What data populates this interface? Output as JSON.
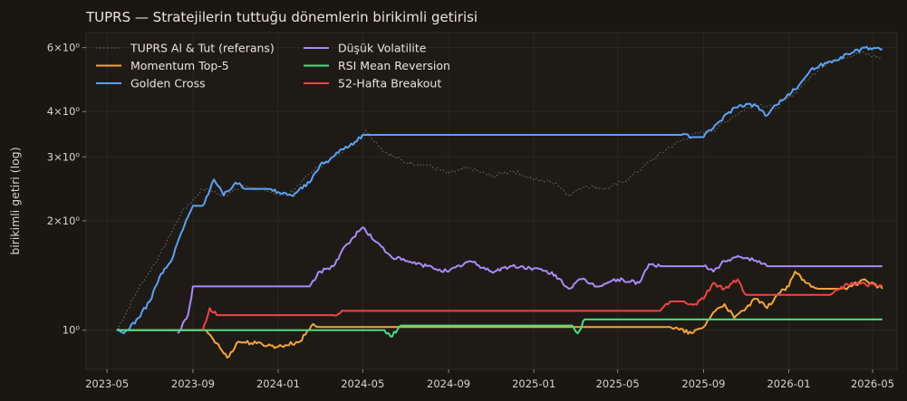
{
  "chart_data": {
    "type": "line",
    "title": "TUPRS — Stratejilerin tuttuğu dönemlerin birikimli getirisi",
    "xlabel": "",
    "ylabel": "birikimli getiri (log)",
    "yscale": "log",
    "ylim": [
      0.78,
      6.6
    ],
    "xlim": [
      "2023-04-01",
      "2026-06-05"
    ],
    "x_ticks": [
      "2023-05",
      "2023-09",
      "2024-01",
      "2024-05",
      "2024-09",
      "2025-01",
      "2025-05",
      "2025-09",
      "2026-01",
      "2026-05"
    ],
    "y_ticks": [
      {
        "value": 1,
        "label": "10⁰"
      },
      {
        "value": 2,
        "label": "2×10⁰"
      },
      {
        "value": 3,
        "label": "3×10⁰"
      },
      {
        "value": 4,
        "label": "4×10⁰"
      },
      {
        "value": 6,
        "label": "6×10⁰"
      }
    ],
    "grid": true,
    "legend_position": "top-left",
    "series": [
      {
        "name": "TUPRS Al & Tut (referans)",
        "color": "#6e6a62",
        "style": "dotted",
        "points": [
          [
            "2023-05-15",
            1.0
          ],
          [
            "2023-06-15",
            1.3
          ],
          [
            "2023-07-15",
            1.6
          ],
          [
            "2023-08-15",
            2.1
          ],
          [
            "2023-09-15",
            2.45
          ],
          [
            "2023-10-15",
            2.35
          ],
          [
            "2023-11-15",
            2.5
          ],
          [
            "2023-12-15",
            2.4
          ],
          [
            "2024-01-15",
            2.35
          ],
          [
            "2024-02-15",
            2.7
          ],
          [
            "2024-03-15",
            2.95
          ],
          [
            "2024-04-15",
            3.25
          ],
          [
            "2024-05-05",
            3.55
          ],
          [
            "2024-06-01",
            3.1
          ],
          [
            "2024-07-01",
            2.9
          ],
          [
            "2024-08-01",
            2.85
          ],
          [
            "2024-09-01",
            2.7
          ],
          [
            "2024-10-01",
            2.8
          ],
          [
            "2024-11-01",
            2.65
          ],
          [
            "2024-12-01",
            2.75
          ],
          [
            "2025-01-01",
            2.6
          ],
          [
            "2025-02-01",
            2.55
          ],
          [
            "2025-02-20",
            2.35
          ],
          [
            "2025-03-15",
            2.5
          ],
          [
            "2025-04-15",
            2.45
          ],
          [
            "2025-05-15",
            2.6
          ],
          [
            "2025-06-15",
            2.9
          ],
          [
            "2025-07-15",
            3.2
          ],
          [
            "2025-08-15",
            3.45
          ],
          [
            "2025-09-15",
            3.55
          ],
          [
            "2025-10-15",
            3.9
          ],
          [
            "2025-11-15",
            4.2
          ],
          [
            "2025-12-15",
            4.1
          ],
          [
            "2026-01-15",
            4.6
          ],
          [
            "2026-02-15",
            5.3
          ],
          [
            "2026-03-15",
            5.6
          ],
          [
            "2026-04-15",
            5.8
          ],
          [
            "2026-05-15",
            5.6
          ]
        ]
      },
      {
        "name": "Momentum Top-5",
        "color": "#f5a53a",
        "style": "solid",
        "points": [
          [
            "2023-05-15",
            1.0
          ],
          [
            "2023-09-20",
            1.0
          ],
          [
            "2023-10-05",
            0.92
          ],
          [
            "2023-10-20",
            0.84
          ],
          [
            "2023-11-05",
            0.93
          ],
          [
            "2023-12-01",
            0.92
          ],
          [
            "2024-01-01",
            0.9
          ],
          [
            "2024-02-01",
            0.93
          ],
          [
            "2024-02-20",
            1.04
          ],
          [
            "2024-03-01",
            1.02
          ],
          [
            "2024-04-01",
            1.02
          ],
          [
            "2024-05-01",
            1.02
          ],
          [
            "2024-09-01",
            1.02
          ],
          [
            "2025-01-01",
            1.02
          ],
          [
            "2025-07-15",
            1.02
          ],
          [
            "2025-08-15",
            0.98
          ],
          [
            "2025-09-01",
            1.02
          ],
          [
            "2025-09-15",
            1.12
          ],
          [
            "2025-10-01",
            1.18
          ],
          [
            "2025-10-15",
            1.08
          ],
          [
            "2025-11-01",
            1.15
          ],
          [
            "2025-11-15",
            1.22
          ],
          [
            "2025-12-01",
            1.15
          ],
          [
            "2025-12-15",
            1.25
          ],
          [
            "2026-01-01",
            1.32
          ],
          [
            "2026-01-10",
            1.45
          ],
          [
            "2026-01-25",
            1.35
          ],
          [
            "2026-02-15",
            1.3
          ],
          [
            "2026-03-15",
            1.3
          ],
          [
            "2026-04-01",
            1.32
          ],
          [
            "2026-04-20",
            1.38
          ],
          [
            "2026-05-15",
            1.3
          ]
        ]
      },
      {
        "name": "Golden Cross",
        "color": "#5aa2f5",
        "style": "solid",
        "points": [
          [
            "2023-05-15",
            1.0
          ],
          [
            "2023-05-25",
            0.98
          ],
          [
            "2023-06-15",
            1.08
          ],
          [
            "2023-07-01",
            1.2
          ],
          [
            "2023-07-15",
            1.4
          ],
          [
            "2023-08-01",
            1.55
          ],
          [
            "2023-08-15",
            1.85
          ],
          [
            "2023-09-01",
            2.2
          ],
          [
            "2023-09-15",
            2.2
          ],
          [
            "2023-10-01",
            2.6
          ],
          [
            "2023-10-15",
            2.35
          ],
          [
            "2023-11-01",
            2.55
          ],
          [
            "2023-11-15",
            2.45
          ],
          [
            "2023-12-15",
            2.45
          ],
          [
            "2024-01-01",
            2.4
          ],
          [
            "2024-01-20",
            2.35
          ],
          [
            "2024-02-15",
            2.55
          ],
          [
            "2024-03-01",
            2.85
          ],
          [
            "2024-03-15",
            2.95
          ],
          [
            "2024-04-01",
            3.15
          ],
          [
            "2024-04-20",
            3.3
          ],
          [
            "2024-05-01",
            3.45
          ],
          [
            "2024-06-01",
            3.45
          ],
          [
            "2025-01-01",
            3.45
          ],
          [
            "2025-08-01",
            3.45
          ],
          [
            "2025-08-15",
            3.4
          ],
          [
            "2025-09-01",
            3.4
          ],
          [
            "2025-09-20",
            3.7
          ],
          [
            "2025-10-15",
            4.1
          ],
          [
            "2025-11-01",
            4.2
          ],
          [
            "2025-11-15",
            4.15
          ],
          [
            "2025-12-01",
            3.9
          ],
          [
            "2025-12-20",
            4.3
          ],
          [
            "2026-01-10",
            4.6
          ],
          [
            "2026-02-01",
            5.2
          ],
          [
            "2026-03-01",
            5.5
          ],
          [
            "2026-04-01",
            5.8
          ],
          [
            "2026-04-20",
            6.0
          ],
          [
            "2026-05-15",
            5.95
          ]
        ]
      },
      {
        "name": "Düşük Volatilite",
        "color": "#a78bfa",
        "style": "solid",
        "points": [
          [
            "2023-08-10",
            0.98
          ],
          [
            "2023-08-25",
            1.1
          ],
          [
            "2023-09-01",
            1.32
          ],
          [
            "2023-10-01",
            1.32
          ],
          [
            "2024-01-01",
            1.32
          ],
          [
            "2024-02-15",
            1.32
          ],
          [
            "2024-03-01",
            1.45
          ],
          [
            "2024-03-20",
            1.5
          ],
          [
            "2024-04-01",
            1.65
          ],
          [
            "2024-04-15",
            1.78
          ],
          [
            "2024-05-01",
            1.92
          ],
          [
            "2024-05-20",
            1.75
          ],
          [
            "2024-06-10",
            1.6
          ],
          [
            "2024-07-01",
            1.55
          ],
          [
            "2024-08-01",
            1.5
          ],
          [
            "2024-09-01",
            1.45
          ],
          [
            "2024-10-01",
            1.55
          ],
          [
            "2024-11-01",
            1.45
          ],
          [
            "2024-12-01",
            1.5
          ],
          [
            "2025-01-01",
            1.48
          ],
          [
            "2025-02-01",
            1.42
          ],
          [
            "2025-02-20",
            1.3
          ],
          [
            "2025-03-10",
            1.38
          ],
          [
            "2025-04-01",
            1.32
          ],
          [
            "2025-05-01",
            1.38
          ],
          [
            "2025-06-01",
            1.35
          ],
          [
            "2025-06-15",
            1.52
          ],
          [
            "2025-07-01",
            1.5
          ],
          [
            "2025-09-01",
            1.5
          ],
          [
            "2025-09-15",
            1.45
          ],
          [
            "2025-10-01",
            1.55
          ],
          [
            "2025-10-20",
            1.6
          ],
          [
            "2025-11-01",
            1.58
          ],
          [
            "2025-11-20",
            1.55
          ],
          [
            "2025-12-01",
            1.5
          ],
          [
            "2026-05-15",
            1.5
          ]
        ]
      },
      {
        "name": "RSI Mean Reversion",
        "color": "#4ade80",
        "style": "solid",
        "points": [
          [
            "2023-05-15",
            1.0
          ],
          [
            "2024-06-01",
            1.0
          ],
          [
            "2024-06-10",
            0.96
          ],
          [
            "2024-06-25",
            1.03
          ],
          [
            "2024-09-01",
            1.03
          ],
          [
            "2025-01-01",
            1.03
          ],
          [
            "2025-02-25",
            1.03
          ],
          [
            "2025-03-05",
            0.98
          ],
          [
            "2025-03-15",
            1.07
          ],
          [
            "2025-06-01",
            1.07
          ],
          [
            "2026-01-01",
            1.07
          ],
          [
            "2026-05-15",
            1.07
          ]
        ]
      },
      {
        "name": "52-Hafta Breakout",
        "color": "#ef4444",
        "style": "solid",
        "points": [
          [
            "2023-09-15",
            1.0
          ],
          [
            "2023-09-25",
            1.15
          ],
          [
            "2023-10-05",
            1.1
          ],
          [
            "2024-01-01",
            1.1
          ],
          [
            "2024-03-20",
            1.1
          ],
          [
            "2024-04-01",
            1.13
          ],
          [
            "2024-09-01",
            1.13
          ],
          [
            "2025-01-01",
            1.13
          ],
          [
            "2025-07-01",
            1.13
          ],
          [
            "2025-07-15",
            1.2
          ],
          [
            "2025-08-01",
            1.2
          ],
          [
            "2025-08-20",
            1.18
          ],
          [
            "2025-09-01",
            1.22
          ],
          [
            "2025-09-15",
            1.35
          ],
          [
            "2025-10-01",
            1.3
          ],
          [
            "2025-10-20",
            1.38
          ],
          [
            "2025-11-01",
            1.25
          ],
          [
            "2026-01-01",
            1.25
          ],
          [
            "2026-03-01",
            1.25
          ],
          [
            "2026-03-15",
            1.3
          ],
          [
            "2026-04-01",
            1.35
          ],
          [
            "2026-05-15",
            1.32
          ]
        ]
      }
    ]
  }
}
